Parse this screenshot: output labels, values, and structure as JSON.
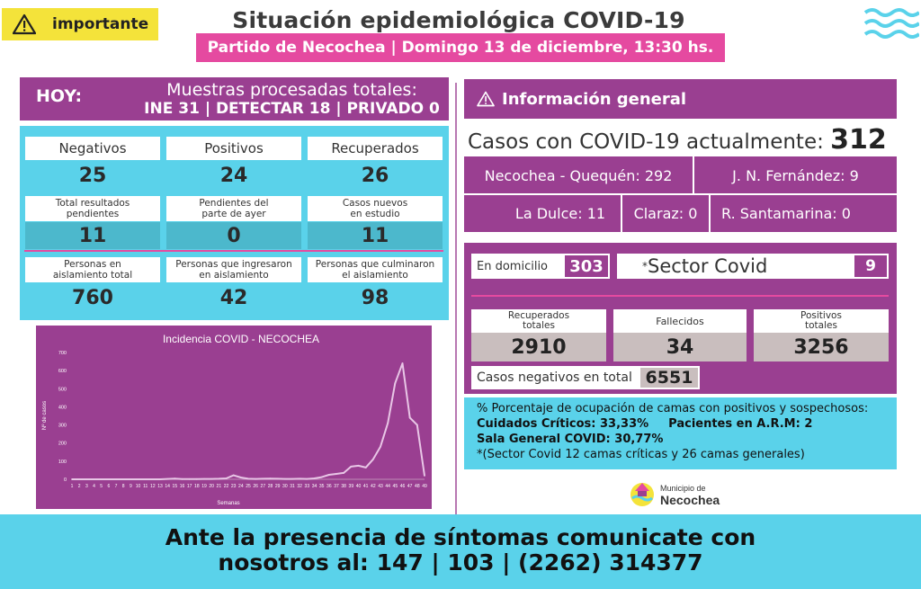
{
  "header": {
    "badge": "importante",
    "title": "Situación epidemiológica COVID-19",
    "subtitle": "Partido de Necochea | Domingo 13 de diciembre, 13:30 hs."
  },
  "hoy": {
    "label": "HOY:",
    "line1": "Muestras procesadas totales:",
    "line2": "INE 31 | DETECTAR 18 | PRIVADO 0"
  },
  "stats": [
    {
      "label": "Negativos",
      "value": "25"
    },
    {
      "label": "Positivos",
      "value": "24"
    },
    {
      "label": "Recuperados",
      "value": "26"
    }
  ],
  "stats2": [
    {
      "label1": "Total resultados",
      "label2": "pendientes",
      "value": "11"
    },
    {
      "label1": "Pendientes del",
      "label2": "parte de ayer",
      "value": "0"
    },
    {
      "label1": "Casos nuevos",
      "label2": "en estudio",
      "value": "11"
    }
  ],
  "stats3": [
    {
      "label1": "Personas en",
      "label2": "aislamiento total",
      "value": "760"
    },
    {
      "label1": "Personas que ingresaron",
      "label2": "en aislamiento",
      "value": "42"
    },
    {
      "label1": "Personas que culminaron",
      "label2": "el aislamiento",
      "value": "98"
    }
  ],
  "chart_data": {
    "type": "line",
    "title": "Incidencia COVID - NECOCHEA",
    "xlabel": "Semanas",
    "ylabel": "Nº de casos",
    "ylim": [
      0,
      700
    ],
    "yticks": [
      0,
      100,
      200,
      300,
      400,
      500,
      600,
      700
    ],
    "x": [
      1,
      2,
      3,
      4,
      5,
      6,
      7,
      8,
      9,
      10,
      11,
      12,
      13,
      14,
      15,
      16,
      17,
      18,
      19,
      20,
      21,
      22,
      23,
      24,
      25,
      26,
      27,
      28,
      29,
      30,
      31,
      32,
      33,
      34,
      35,
      36,
      37,
      38,
      39,
      40,
      41,
      42,
      43,
      44,
      45,
      46,
      47,
      48,
      49
    ],
    "values": [
      0,
      0,
      0,
      0,
      0,
      0,
      0,
      0,
      0,
      0,
      0,
      0,
      0,
      2,
      4,
      1,
      1,
      1,
      2,
      2,
      3,
      5,
      22,
      10,
      3,
      2,
      3,
      4,
      3,
      2,
      2,
      3,
      2,
      5,
      12,
      25,
      30,
      35,
      70,
      75,
      65,
      110,
      180,
      310,
      530,
      640,
      340,
      300,
      20
    ],
    "color": "#e8c6e6"
  },
  "info": {
    "title": "Información general",
    "casos_label": "Casos con COVID-19 actualmente:",
    "casos_value": "312",
    "loc1": "Necochea - Quequén: 292",
    "loc2": "J. N. Fernández: 9",
    "loc3": "La Dulce: 11",
    "loc4": "Claraz: 0",
    "loc5": "R. Santamarina: 0"
  },
  "domicilio": {
    "label": "En domicilio",
    "value": "303"
  },
  "sector": {
    "label": "Sector Covid",
    "mark": "*",
    "value": "9"
  },
  "totals": [
    {
      "label1": "Recuperados",
      "label2": "totales",
      "value": "2910"
    },
    {
      "label1": "Fallecidos",
      "label2": "",
      "value": "34"
    },
    {
      "label1": "Positivos",
      "label2": "totales",
      "value": "3256"
    }
  ],
  "negativos": {
    "label": "Casos negativos en total",
    "value": "6551"
  },
  "ocupacion": {
    "line1": "% Porcentaje de ocupación de camas con positivos y sospechosos:",
    "line2a": "Cuidados Críticos: 33,33%",
    "line2b": "Pacientes en A.R.M: 2",
    "line3": "Sala General COVID: 30,77%",
    "line4": "*(Sector Covid 12 camas críticas y 26 camas generales)"
  },
  "logo": {
    "small": "Municipio de",
    "big": "Necochea"
  },
  "footer": {
    "line1": "Ante la presencia de síntomas comunicate con",
    "line2": "nosotros al: 147 | 103 | (2262) 314377"
  },
  "colors": {
    "purple": "#9a3f91",
    "pink": "#e54aa0",
    "cyan": "#5ad2ea",
    "yellow": "#f4e33a"
  }
}
